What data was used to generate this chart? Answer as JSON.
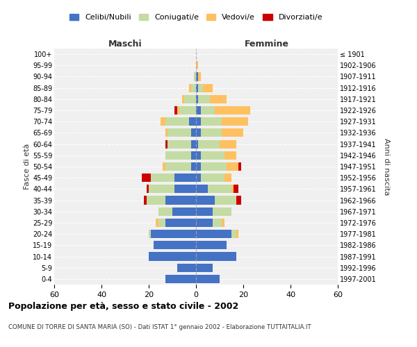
{
  "age_groups": [
    "0-4",
    "5-9",
    "10-14",
    "15-19",
    "20-24",
    "25-29",
    "30-34",
    "35-39",
    "40-44",
    "45-49",
    "50-54",
    "55-59",
    "60-64",
    "65-69",
    "70-74",
    "75-79",
    "80-84",
    "85-89",
    "90-94",
    "95-99",
    "100+"
  ],
  "birth_years": [
    "1997-2001",
    "1992-1996",
    "1987-1991",
    "1982-1986",
    "1977-1981",
    "1972-1976",
    "1967-1971",
    "1962-1966",
    "1957-1961",
    "1952-1956",
    "1947-1951",
    "1942-1946",
    "1937-1941",
    "1932-1936",
    "1927-1931",
    "1922-1926",
    "1917-1921",
    "1912-1916",
    "1907-1911",
    "1902-1906",
    "≤ 1901"
  ],
  "maschi": {
    "celibi": [
      13,
      8,
      20,
      18,
      19,
      13,
      10,
      13,
      9,
      9,
      2,
      2,
      2,
      2,
      3,
      0,
      0,
      0,
      0,
      0,
      0
    ],
    "coniugati": [
      0,
      0,
      0,
      0,
      1,
      3,
      6,
      8,
      11,
      10,
      11,
      11,
      10,
      10,
      10,
      7,
      5,
      2,
      1,
      0,
      0
    ],
    "vedovi": [
      0,
      0,
      0,
      0,
      0,
      1,
      0,
      0,
      0,
      0,
      1,
      0,
      0,
      1,
      2,
      1,
      1,
      1,
      0,
      0,
      0
    ],
    "divorziati": [
      0,
      0,
      0,
      0,
      0,
      0,
      0,
      1,
      1,
      4,
      0,
      0,
      1,
      0,
      0,
      1,
      0,
      0,
      0,
      0,
      0
    ]
  },
  "femmine": {
    "nubili": [
      10,
      7,
      17,
      13,
      15,
      7,
      7,
      8,
      5,
      2,
      2,
      2,
      1,
      2,
      2,
      2,
      1,
      1,
      1,
      0,
      0
    ],
    "coniugate": [
      0,
      0,
      0,
      0,
      2,
      4,
      8,
      9,
      10,
      10,
      11,
      10,
      9,
      9,
      9,
      6,
      5,
      2,
      0,
      0,
      0
    ],
    "vedove": [
      0,
      0,
      0,
      0,
      1,
      1,
      0,
      0,
      1,
      3,
      5,
      5,
      7,
      9,
      11,
      15,
      7,
      4,
      1,
      1,
      0
    ],
    "divorziate": [
      0,
      0,
      0,
      0,
      0,
      0,
      0,
      2,
      2,
      0,
      1,
      0,
      0,
      0,
      0,
      0,
      0,
      0,
      0,
      0,
      0
    ]
  },
  "colors": {
    "celibi": "#4472c4",
    "coniugati": "#c5dba4",
    "vedovi": "#ffc060",
    "divorziati": "#cc0000"
  },
  "xlim": 60,
  "title": "Popolazione per età, sesso e stato civile - 2002",
  "subtitle": "COMUNE DI TORRE DI SANTA MARIA (SO) - Dati ISTAT 1° gennaio 2002 - Elaborazione TUTTAITALIA.IT",
  "xlabel_left": "Maschi",
  "xlabel_right": "Femmine",
  "ylabel_left": "Fasce di età",
  "ylabel_right": "Anni di nascita",
  "legend_labels": [
    "Celibi/Nubili",
    "Coniugati/e",
    "Vedovi/e",
    "Divorziati/e"
  ],
  "bg_color": "#ffffff",
  "plot_bg": "#f0f0f0"
}
